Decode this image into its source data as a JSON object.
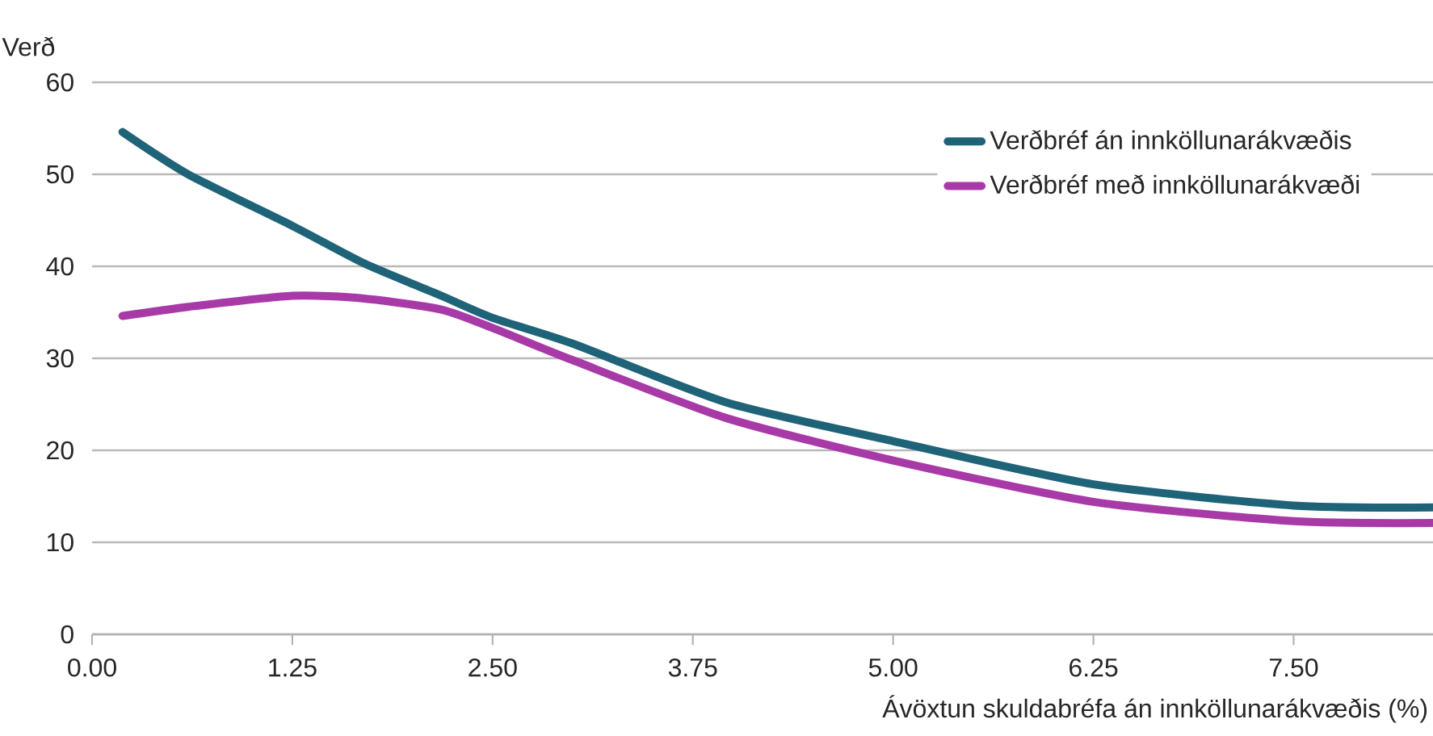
{
  "chart_data": {
    "type": "line",
    "xlabel": "Ávöxtun skuldabréfa án innköllunarákvæðis (%)",
    "ylabel": "Verð",
    "xlim": [
      0,
      8.37
    ],
    "ylim": [
      0,
      60
    ],
    "xticks": [
      {
        "value": 0,
        "label": "0.00"
      },
      {
        "value": 1.25,
        "label": "1.25"
      },
      {
        "value": 2.5,
        "label": "2.50"
      },
      {
        "value": 3.75,
        "label": "3.75"
      },
      {
        "value": 5,
        "label": "5.00"
      },
      {
        "value": 6.25,
        "label": "6.25"
      },
      {
        "value": 7.5,
        "label": "7.50"
      }
    ],
    "yticks": [
      0,
      10,
      20,
      30,
      40,
      50,
      60
    ],
    "grid": "y",
    "legend": "top right",
    "marker": "none",
    "line_style": "solid",
    "series": [
      {
        "name": "Verðbréf án innköllunarákvæðis",
        "color": "#1f6378",
        "x": [
          0.19,
          0.6,
          1.25,
          1.7,
          2.18,
          2.5,
          3.0,
          3.96,
          5.0,
          6.25,
          7.5,
          8.37
        ],
        "values": [
          54.6,
          50.0,
          44.4,
          40.3,
          36.8,
          34.4,
          31.6,
          25.2,
          21.0,
          16.3,
          14.0,
          13.8
        ]
      },
      {
        "name": "Verðbréf með innköllunarákvæði",
        "color": "#a83aa8",
        "x": [
          0.19,
          0.6,
          1.25,
          1.7,
          2.18,
          2.5,
          3.0,
          3.96,
          5.0,
          6.25,
          7.5,
          8.37
        ],
        "values": [
          34.6,
          35.6,
          36.8,
          36.5,
          35.3,
          33.3,
          29.8,
          23.5,
          18.9,
          14.4,
          12.3,
          12.1
        ]
      }
    ]
  }
}
